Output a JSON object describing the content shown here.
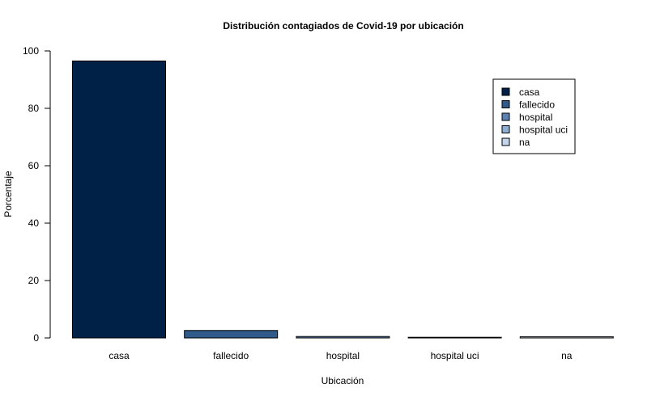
{
  "chart_data": {
    "type": "bar",
    "title": "Distribución contagiados de Covid-19 por ubicación",
    "xlabel": "Ubicación",
    "ylabel": "Porcentaje",
    "categories": [
      "casa",
      "fallecido",
      "hospital",
      "hospital uci",
      "na"
    ],
    "values": [
      96.5,
      2.6,
      0.5,
      0.1,
      0.4
    ],
    "colors": [
      "#002147",
      "#2f5a8a",
      "#5b82b2",
      "#8fafd4",
      "#c3d6ee"
    ],
    "ylim": [
      0,
      100
    ],
    "yticks": [
      0,
      20,
      40,
      60,
      80,
      100
    ],
    "grid": false,
    "legend": {
      "position": "top-right",
      "entries": [
        "casa",
        "fallecido",
        "hospital",
        "hospital uci",
        "na"
      ]
    }
  }
}
